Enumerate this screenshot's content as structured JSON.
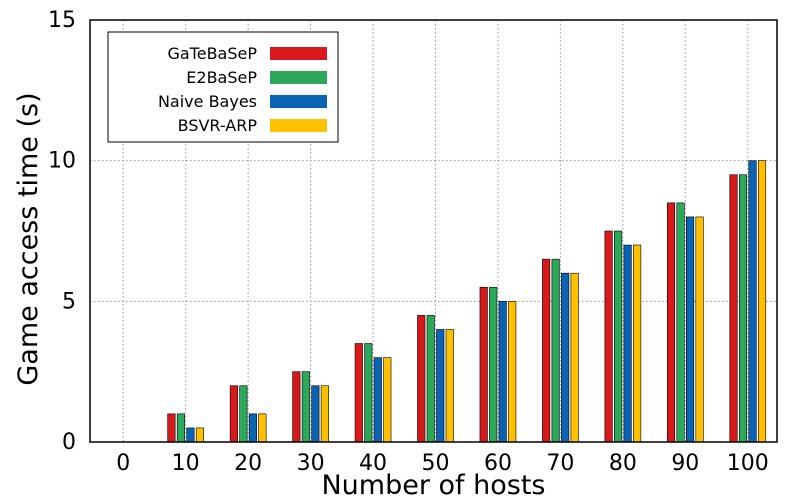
{
  "chart_data": {
    "type": "bar",
    "title": "",
    "xlabel": "Number of hosts",
    "ylabel": "Game access time (s)",
    "categories": [
      "0",
      "10",
      "20",
      "30",
      "40",
      "50",
      "60",
      "70",
      "80",
      "90",
      "100"
    ],
    "ylim": [
      0,
      15
    ],
    "yticks": [
      0,
      5,
      10,
      15
    ],
    "grid": true,
    "legend_position": "top-left",
    "series": [
      {
        "name": "GaTeBaSeP",
        "color": "#d7191c",
        "values": [
          0,
          1.0,
          2.0,
          2.5,
          3.5,
          4.5,
          5.5,
          6.5,
          7.5,
          8.5,
          9.5
        ]
      },
      {
        "name": "E2BaSeP",
        "color": "#2ca85a",
        "values": [
          0,
          1.0,
          2.0,
          2.5,
          3.5,
          4.5,
          5.5,
          6.5,
          7.5,
          8.5,
          9.5
        ]
      },
      {
        "name": "Naive Bayes",
        "color": "#0b63b4",
        "values": [
          0,
          0.5,
          1.0,
          2.0,
          3.0,
          4.0,
          5.0,
          6.0,
          7.0,
          8.0,
          10.0
        ]
      },
      {
        "name": "BSVR-ARP",
        "color": "#ffc000",
        "values": [
          0,
          0.5,
          1.0,
          2.0,
          3.0,
          4.0,
          5.0,
          6.0,
          7.0,
          8.0,
          10.0
        ]
      }
    ]
  }
}
